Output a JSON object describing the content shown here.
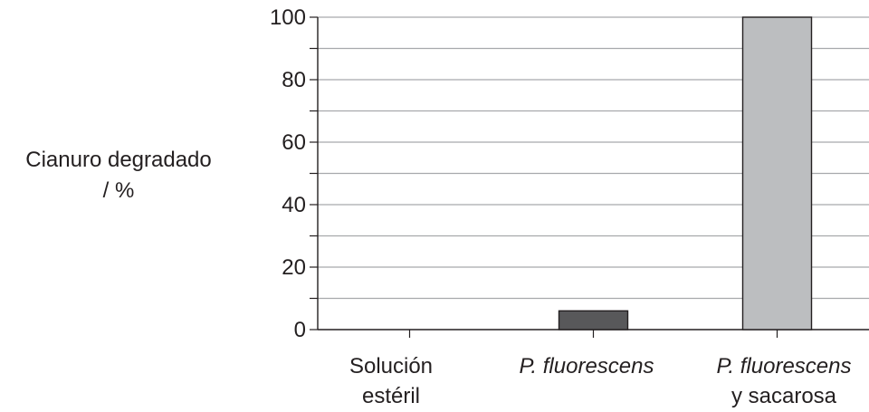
{
  "chart_data": {
    "type": "bar",
    "categories": [
      {
        "line1": "Solución",
        "line2": "estéril",
        "italic_line1": false
      },
      {
        "line1": "P. fluorescens",
        "line2": "",
        "italic_line1": true
      },
      {
        "line1": "P. fluorescens",
        "line2": "y sacarosa",
        "italic_line1": true
      }
    ],
    "values": [
      0,
      6,
      100
    ],
    "bar_colors": [
      "#ffffff",
      "#58585a",
      "#bcbec0"
    ],
    "title": "",
    "xlabel": "",
    "ylabel": [
      "Cianuro degradado",
      "/ %"
    ],
    "ylim": [
      0,
      100
    ],
    "yticks": [
      0,
      20,
      40,
      60,
      80,
      100
    ],
    "grid": true,
    "grid_color": "#a7a9ac",
    "axis_color": "#231f20"
  }
}
